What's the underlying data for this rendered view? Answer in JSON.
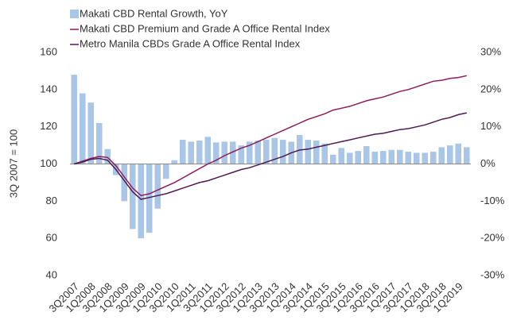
{
  "chart_data": {
    "type": "bar_line",
    "y_axis_label": "3Q 2007 = 100",
    "categories": [
      "3Q2007",
      null,
      "1Q2008",
      null,
      "3Q2008",
      null,
      "1Q2009",
      null,
      "3Q2009",
      null,
      "1Q2010",
      null,
      "3Q2010",
      null,
      "1Q2011",
      null,
      "3Q2011",
      null,
      "1Q2012",
      null,
      "3Q2012",
      null,
      "1Q2013",
      null,
      "3Q2013",
      null,
      "1Q2014",
      null,
      "3Q2014",
      null,
      "1Q2015",
      null,
      "3Q2015",
      null,
      "1Q2016",
      null,
      "3Q2016",
      null,
      "1Q2017",
      null,
      "3Q2017",
      null,
      "1Q2018",
      null,
      "3Q2018",
      null,
      "1Q2019",
      null
    ],
    "series": [
      {
        "name": "Makati CBD Rental Growth, YoY",
        "kind": "bar",
        "axis": "y2",
        "color": "#a9c6e6",
        "values": [
          24,
          19,
          16.5,
          11,
          4,
          -3,
          -10,
          -17.5,
          -20,
          -18.5,
          -12,
          -4,
          1,
          6.5,
          6,
          6.3,
          7.3,
          5.8,
          6,
          6,
          5,
          6,
          6.3,
          6.5,
          7,
          6.5,
          6,
          7.8,
          6.5,
          6.3,
          5.5,
          2.5,
          4.3,
          3,
          3.5,
          4.8,
          3.3,
          3.5,
          3.8,
          3.8,
          3.3,
          3,
          3,
          3.3,
          4.5,
          5,
          5.5,
          4.5
        ]
      },
      {
        "name": "Makati CBD Premium and Grade A Office Rental Index",
        "kind": "line",
        "color": "#8c1c5a",
        "values": [
          100,
          101.5,
          103,
          104,
          103.5,
          99,
          93,
          87,
          83,
          84,
          86,
          88,
          90,
          92.5,
          95,
          97.5,
          100,
          102,
          104.5,
          106.5,
          108.5,
          110,
          112,
          114,
          116,
          118,
          120,
          122,
          124,
          125.5,
          127,
          129,
          130,
          131,
          132.5,
          134,
          135,
          136,
          137.5,
          139,
          140,
          141.5,
          143,
          144.5,
          145,
          146,
          146.5,
          147.5
        ]
      },
      {
        "name": "Metro Manila CBDs Grade A Office Rental Index",
        "kind": "line",
        "color": "#4e1a52",
        "values": [
          100,
          101,
          102.5,
          103,
          102,
          97,
          91,
          85,
          81,
          82,
          83,
          84,
          85.5,
          87,
          88.5,
          90,
          91,
          92.5,
          94,
          95.5,
          97,
          98,
          99.5,
          101,
          102.5,
          104,
          106,
          107.5,
          108,
          109,
          110,
          111,
          112,
          113,
          114,
          115,
          116,
          116.5,
          117.5,
          118.5,
          119,
          120,
          121,
          122.5,
          124,
          125,
          126.5,
          127.5
        ]
      }
    ],
    "ylim": [
      40,
      160
    ],
    "yticks": [
      40,
      60,
      80,
      100,
      120,
      140,
      160
    ],
    "y2lim": [
      -30,
      30
    ],
    "y2ticks": [
      {
        "value": -30,
        "label": "-30%"
      },
      {
        "value": -20,
        "label": "-20%"
      },
      {
        "value": -10,
        "label": "-10%"
      },
      {
        "value": 0,
        "label": "0%"
      },
      {
        "value": 10,
        "label": "10%"
      },
      {
        "value": 20,
        "label": "20%"
      },
      {
        "value": 30,
        "label": "30%"
      }
    ],
    "legend": "top-left"
  }
}
